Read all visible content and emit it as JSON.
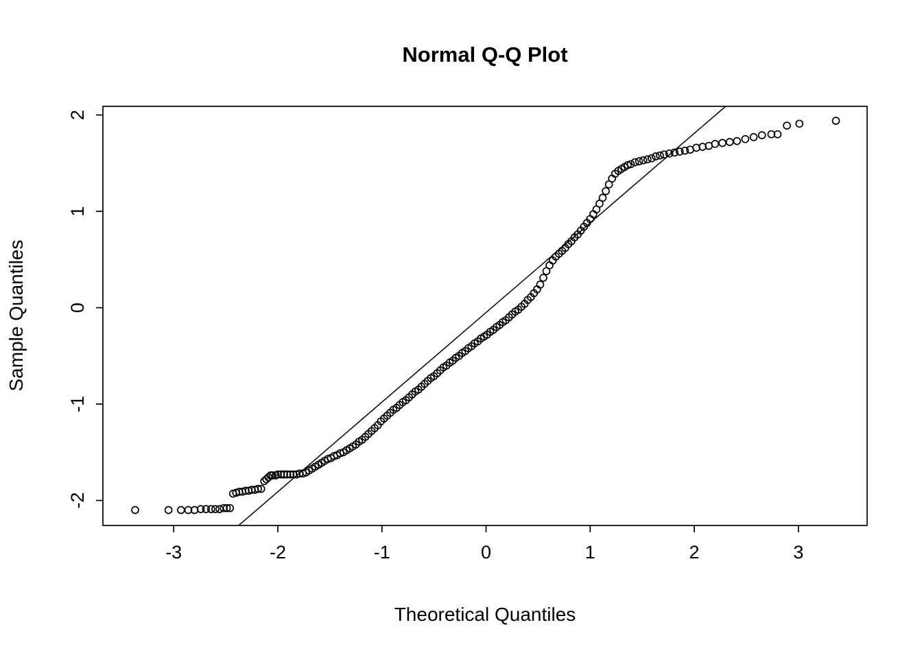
{
  "page": {
    "background_color": "#ffffff",
    "foreground_color": "#000000"
  },
  "chart_data": {
    "type": "scatter",
    "title": "Normal Q-Q Plot",
    "xlabel": "Theoretical Quantiles",
    "ylabel": "Sample Quantiles",
    "xlim": [
      -3.68,
      3.66
    ],
    "ylim": [
      -2.26,
      2.09
    ],
    "x_ticks": [
      -3,
      -2,
      -1,
      0,
      1,
      2,
      3
    ],
    "y_ticks": [
      -2,
      -1,
      0,
      1,
      2
    ],
    "grid": false,
    "legend": "none",
    "marker": {
      "shape": "open-circle",
      "color": "#000000",
      "radius_px": 5
    },
    "reference_line": {
      "slope": 0.93,
      "intercept": -0.05,
      "color": "#000000"
    },
    "points": [
      [
        -3.37,
        -2.1
      ],
      [
        -3.05,
        -2.1
      ],
      [
        -2.93,
        -2.1
      ],
      [
        -2.86,
        -2.1
      ],
      [
        -2.8,
        -2.1
      ],
      [
        -2.74,
        -2.09
      ],
      [
        -2.69,
        -2.09
      ],
      [
        -2.64,
        -2.09
      ],
      [
        -2.6,
        -2.09
      ],
      [
        -2.56,
        -2.09
      ],
      [
        -2.52,
        -2.08
      ],
      [
        -2.49,
        -2.08
      ],
      [
        -2.46,
        -2.08
      ],
      [
        -2.43,
        -1.93
      ],
      [
        -2.4,
        -1.92
      ],
      [
        -2.37,
        -1.91
      ],
      [
        -2.34,
        -1.91
      ],
      [
        -2.31,
        -1.9
      ],
      [
        -2.28,
        -1.9
      ],
      [
        -2.25,
        -1.89
      ],
      [
        -2.22,
        -1.89
      ],
      [
        -2.19,
        -1.88
      ],
      [
        -2.16,
        -1.88
      ],
      [
        -2.13,
        -1.8
      ],
      [
        -2.11,
        -1.78
      ],
      [
        -2.09,
        -1.76
      ],
      [
        -2.07,
        -1.74
      ],
      [
        -2.05,
        -1.74
      ],
      [
        -2.02,
        -1.74
      ],
      [
        -2.0,
        -1.73
      ],
      [
        -1.97,
        -1.73
      ],
      [
        -1.94,
        -1.73
      ],
      [
        -1.91,
        -1.73
      ],
      [
        -1.88,
        -1.73
      ],
      [
        -1.85,
        -1.73
      ],
      [
        -1.82,
        -1.73
      ],
      [
        -1.79,
        -1.72
      ],
      [
        -1.76,
        -1.72
      ],
      [
        -1.73,
        -1.71
      ],
      [
        -1.7,
        -1.69
      ],
      [
        -1.67,
        -1.67
      ],
      [
        -1.64,
        -1.65
      ],
      [
        -1.61,
        -1.63
      ],
      [
        -1.58,
        -1.61
      ],
      [
        -1.55,
        -1.59
      ],
      [
        -1.52,
        -1.57
      ],
      [
        -1.49,
        -1.56
      ],
      [
        -1.46,
        -1.54
      ],
      [
        -1.43,
        -1.53
      ],
      [
        -1.4,
        -1.51
      ],
      [
        -1.37,
        -1.5
      ],
      [
        -1.34,
        -1.48
      ],
      [
        -1.31,
        -1.46
      ],
      [
        -1.28,
        -1.44
      ],
      [
        -1.25,
        -1.42
      ],
      [
        -1.22,
        -1.39
      ],
      [
        -1.19,
        -1.37
      ],
      [
        -1.16,
        -1.34
      ],
      [
        -1.13,
        -1.31
      ],
      [
        -1.1,
        -1.28
      ],
      [
        -1.07,
        -1.25
      ],
      [
        -1.04,
        -1.22
      ],
      [
        -1.01,
        -1.18
      ],
      [
        -0.98,
        -1.15
      ],
      [
        -0.95,
        -1.12
      ],
      [
        -0.92,
        -1.09
      ],
      [
        -0.89,
        -1.06
      ],
      [
        -0.86,
        -1.04
      ],
      [
        -0.83,
        -1.01
      ],
      [
        -0.8,
        -0.98
      ],
      [
        -0.77,
        -0.96
      ],
      [
        -0.74,
        -0.93
      ],
      [
        -0.71,
        -0.9
      ],
      [
        -0.68,
        -0.87
      ],
      [
        -0.65,
        -0.85
      ],
      [
        -0.62,
        -0.82
      ],
      [
        -0.59,
        -0.79
      ],
      [
        -0.56,
        -0.76
      ],
      [
        -0.53,
        -0.73
      ],
      [
        -0.5,
        -0.71
      ],
      [
        -0.47,
        -0.68
      ],
      [
        -0.44,
        -0.65
      ],
      [
        -0.41,
        -0.62
      ],
      [
        -0.38,
        -0.6
      ],
      [
        -0.35,
        -0.57
      ],
      [
        -0.32,
        -0.55
      ],
      [
        -0.29,
        -0.52
      ],
      [
        -0.26,
        -0.5
      ],
      [
        -0.23,
        -0.47
      ],
      [
        -0.2,
        -0.45
      ],
      [
        -0.17,
        -0.42
      ],
      [
        -0.14,
        -0.4
      ],
      [
        -0.11,
        -0.37
      ],
      [
        -0.08,
        -0.35
      ],
      [
        -0.05,
        -0.32
      ],
      [
        -0.02,
        -0.3
      ],
      [
        0.01,
        -0.28
      ],
      [
        0.04,
        -0.25
      ],
      [
        0.07,
        -0.23
      ],
      [
        0.1,
        -0.2
      ],
      [
        0.13,
        -0.18
      ],
      [
        0.16,
        -0.15
      ],
      [
        0.19,
        -0.13
      ],
      [
        0.22,
        -0.1
      ],
      [
        0.25,
        -0.07
      ],
      [
        0.28,
        -0.04
      ],
      [
        0.31,
        -0.02
      ],
      [
        0.34,
        0.01
      ],
      [
        0.37,
        0.04
      ],
      [
        0.4,
        0.08
      ],
      [
        0.43,
        0.11
      ],
      [
        0.46,
        0.15
      ],
      [
        0.49,
        0.19
      ],
      [
        0.52,
        0.24
      ],
      [
        0.55,
        0.31
      ],
      [
        0.58,
        0.38
      ],
      [
        0.61,
        0.44
      ],
      [
        0.64,
        0.49
      ],
      [
        0.67,
        0.53
      ],
      [
        0.7,
        0.56
      ],
      [
        0.73,
        0.59
      ],
      [
        0.76,
        0.62
      ],
      [
        0.79,
        0.66
      ],
      [
        0.82,
        0.69
      ],
      [
        0.85,
        0.73
      ],
      [
        0.88,
        0.76
      ],
      [
        0.91,
        0.8
      ],
      [
        0.94,
        0.84
      ],
      [
        0.97,
        0.88
      ],
      [
        1.0,
        0.92
      ],
      [
        1.03,
        0.97
      ],
      [
        1.06,
        1.02
      ],
      [
        1.09,
        1.08
      ],
      [
        1.12,
        1.14
      ],
      [
        1.15,
        1.21
      ],
      [
        1.18,
        1.28
      ],
      [
        1.21,
        1.34
      ],
      [
        1.24,
        1.39
      ],
      [
        1.27,
        1.42
      ],
      [
        1.3,
        1.44
      ],
      [
        1.33,
        1.46
      ],
      [
        1.36,
        1.48
      ],
      [
        1.39,
        1.49
      ],
      [
        1.43,
        1.51
      ],
      [
        1.47,
        1.52
      ],
      [
        1.51,
        1.53
      ],
      [
        1.55,
        1.54
      ],
      [
        1.59,
        1.55
      ],
      [
        1.63,
        1.57
      ],
      [
        1.67,
        1.58
      ],
      [
        1.71,
        1.59
      ],
      [
        1.76,
        1.6
      ],
      [
        1.81,
        1.61
      ],
      [
        1.86,
        1.62
      ],
      [
        1.91,
        1.63
      ],
      [
        1.96,
        1.64
      ],
      [
        2.02,
        1.66
      ],
      [
        2.08,
        1.67
      ],
      [
        2.14,
        1.68
      ],
      [
        2.2,
        1.7
      ],
      [
        2.27,
        1.71
      ],
      [
        2.34,
        1.72
      ],
      [
        2.41,
        1.73
      ],
      [
        2.49,
        1.75
      ],
      [
        2.57,
        1.77
      ],
      [
        2.65,
        1.79
      ],
      [
        2.74,
        1.8
      ],
      [
        2.8,
        1.8
      ],
      [
        2.89,
        1.89
      ],
      [
        3.01,
        1.91
      ],
      [
        3.36,
        1.94
      ]
    ]
  }
}
